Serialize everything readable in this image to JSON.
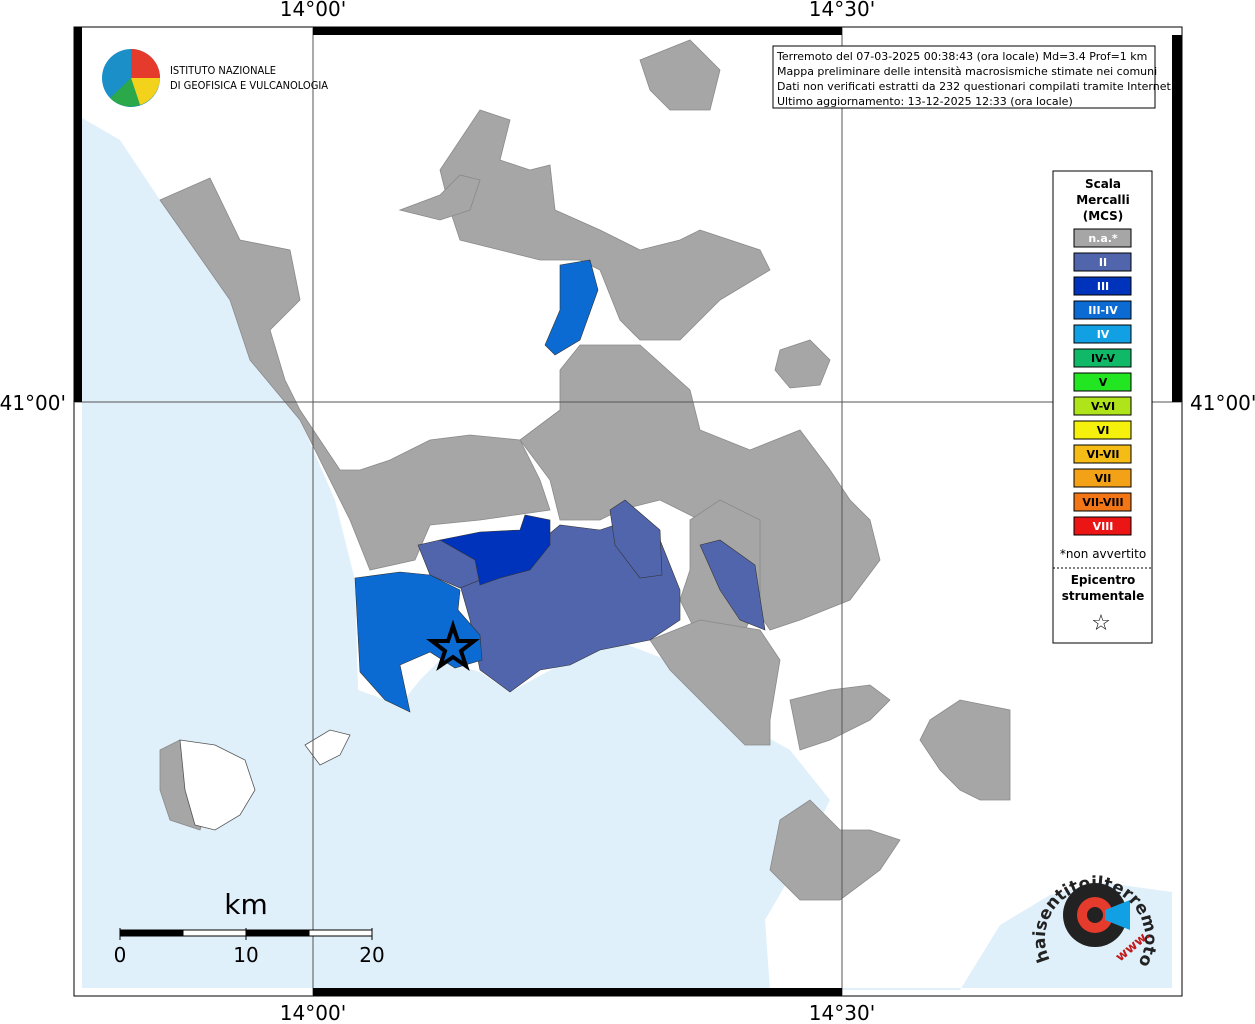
{
  "header": {
    "logo_lines": [
      "ISTITUTO NAZIONALE",
      "DI GEOFISICA E VULCANOLOGIA"
    ]
  },
  "grid": {
    "lon_labels": [
      "14°00'",
      "14°30'"
    ],
    "lat_labels": [
      "41°00'"
    ]
  },
  "info_box": {
    "lines": [
      "Terremoto del 07-03-2025 00:38:43 (ora locale) Md=3.4 Prof=1 km",
      "Mappa preliminare delle intensità macrosismiche stimate nei comuni",
      "Dati non verificati estratti da 232 questionari compilati tramite Internet.",
      "Ultimo aggiornamento: 13-12-2025 12:33 (ora locale)"
    ]
  },
  "legend": {
    "title_lines": [
      "Scala",
      "Mercalli",
      "(MCS)"
    ],
    "items": [
      {
        "label": "n.a.*",
        "color": "#a6a6a6",
        "text_color": "#ffffff"
      },
      {
        "label": "II",
        "color": "#5165ad",
        "text_color": "#ffffff"
      },
      {
        "label": "III",
        "color": "#0033bb",
        "text_color": "#ffffff"
      },
      {
        "label": "III-IV",
        "color": "#0b6bd2",
        "text_color": "#ffffff"
      },
      {
        "label": "IV",
        "color": "#11a0e3",
        "text_color": "#ffffff"
      },
      {
        "label": "IV-V",
        "color": "#10b968",
        "text_color": "#000000"
      },
      {
        "label": "V",
        "color": "#21e621",
        "text_color": "#000000"
      },
      {
        "label": "V-VI",
        "color": "#b0e41a",
        "text_color": "#000000"
      },
      {
        "label": "VI",
        "color": "#f6f10c",
        "text_color": "#000000"
      },
      {
        "label": "VI-VII",
        "color": "#f4bc14",
        "text_color": "#000000"
      },
      {
        "label": "VII",
        "color": "#f3a116",
        "text_color": "#000000"
      },
      {
        "label": "VII-VIII",
        "color": "#f27516",
        "text_color": "#000000"
      },
      {
        "label": "VIII",
        "color": "#ec1515",
        "text_color": "#ffffff"
      }
    ],
    "note": "*non avvertito",
    "epicenter_lines": [
      "Epicentro",
      "strumentale"
    ],
    "epicenter_symbol": "☆"
  },
  "scale_bar": {
    "unit": "km",
    "ticks": [
      0,
      10,
      20
    ]
  },
  "watermark": {
    "site": "haisentitoilterremoto.it",
    "prefix": "www."
  }
}
